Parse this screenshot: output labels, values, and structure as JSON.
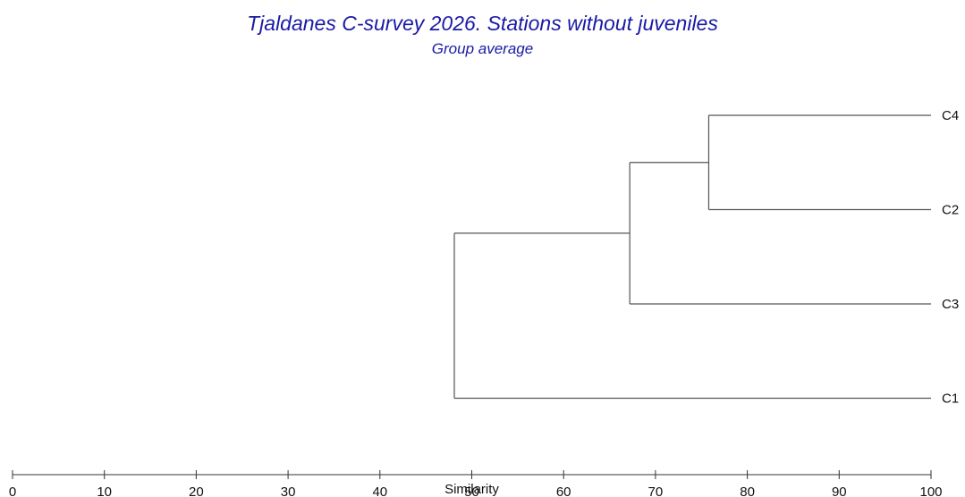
{
  "chart_data": {
    "type": "dendrogram",
    "title": "Tjaldanes C-survey 2026. Stations without juveniles",
    "subtitle": "Group average",
    "xlabel": "Similarity",
    "xlim": [
      0,
      100
    ],
    "ticks": [
      0,
      10,
      20,
      30,
      40,
      50,
      60,
      70,
      80,
      90,
      100
    ],
    "leaves": [
      "C4",
      "C2",
      "C3",
      "C1"
    ],
    "merges": [
      {
        "children": [
          "C4",
          "C2"
        ],
        "similarity": 75.8
      },
      {
        "children": [
          "C4+C2",
          "C3"
        ],
        "similarity": 67.2
      },
      {
        "children": [
          "C4+C2+C3",
          "C1"
        ],
        "similarity": 48.1
      }
    ],
    "colors": {
      "title": "#1a1aa6",
      "lines": "#555555",
      "text": "#111111"
    }
  }
}
